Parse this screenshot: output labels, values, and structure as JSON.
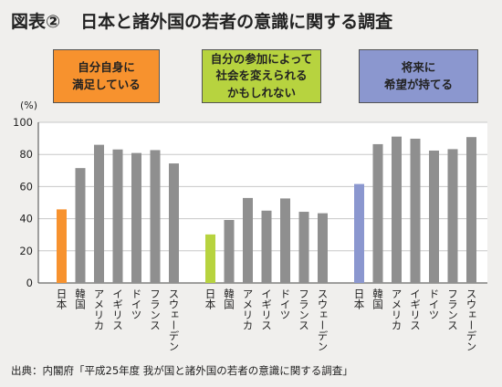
{
  "title": {
    "number": "図表②",
    "text": "日本と諸外国の若者の意識に関する調査"
  },
  "legend": [
    {
      "label": "自分自身に\n満足している",
      "color": "#f7922e"
    },
    {
      "label": "自分の参加によって\n社会を変えられる\nかもしれない",
      "color": "#b7d33f"
    },
    {
      "label": "将来に\n希望が持てる",
      "color": "#8b97cf"
    }
  ],
  "source": "出典：内閣府「平成25年度 我が国と諸外国の若者の意識に関する調査」",
  "chart_data": {
    "type": "bar",
    "ylabel": "(%)",
    "ylim": [
      0,
      100
    ],
    "yticks": [
      0,
      20,
      40,
      60,
      80,
      100
    ],
    "grid": true,
    "categories": [
      "日本",
      "韓国",
      "アメリカ",
      "イギリス",
      "ドイツ",
      "フランス",
      "スウェーデン"
    ],
    "bar_color": "#8f8f8f",
    "groups": [
      {
        "name": "自分自身に満足している",
        "highlight_color": "#f7922e",
        "values": [
          45.8,
          71.5,
          86.0,
          83.1,
          80.9,
          82.7,
          74.4
        ]
      },
      {
        "name": "自分の参加によって社会を変えられるかもしれない",
        "highlight_color": "#b7d33f",
        "values": [
          30.2,
          39.2,
          52.9,
          45.0,
          52.6,
          44.3,
          43.4
        ]
      },
      {
        "name": "将来に希望が持てる",
        "highlight_color": "#8b97cf",
        "values": [
          61.6,
          86.4,
          91.1,
          89.8,
          82.4,
          83.3,
          90.8
        ]
      }
    ]
  }
}
